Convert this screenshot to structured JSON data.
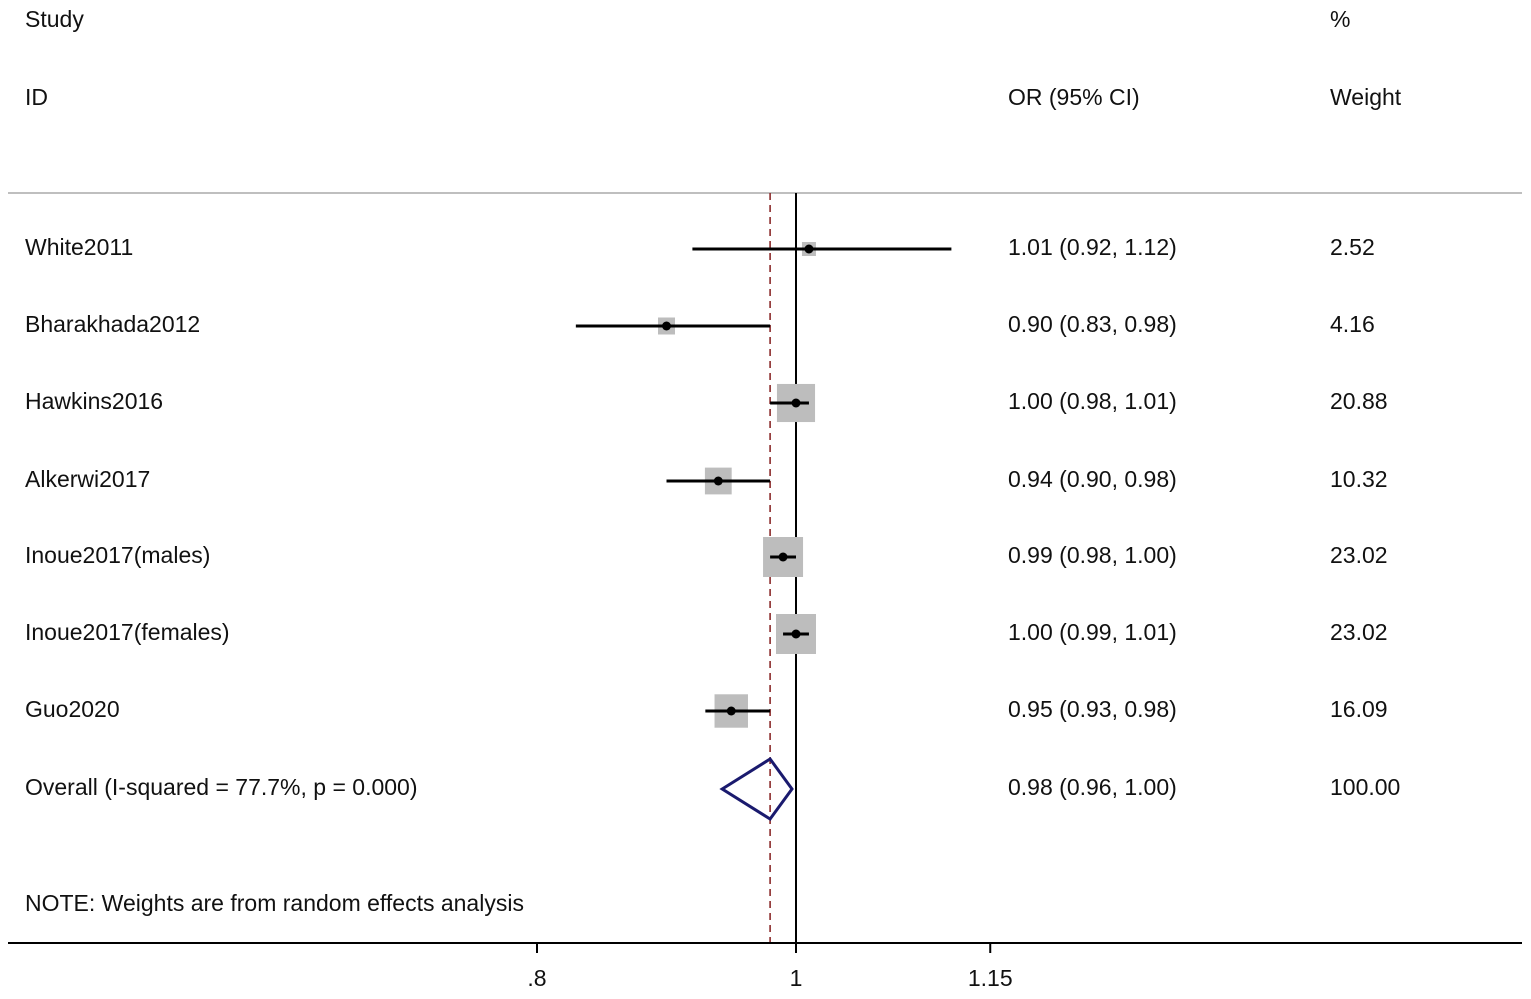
{
  "header": {
    "study": "Study",
    "id": "ID",
    "or_ci": "OR (95% CI)",
    "percent": "%",
    "weight": "Weight"
  },
  "note": "NOTE: Weights are from random effects analysis",
  "chart_data": {
    "type": "forest",
    "xlim": [
      0.72,
      1.5
    ],
    "xticks": [
      {
        "value": 0.8,
        "label": ".8"
      },
      {
        "value": 1.0,
        "label": "1"
      },
      {
        "value": 1.15,
        "label": "1.15"
      }
    ],
    "null_line": 1.0,
    "overall_line": 0.98,
    "studies": [
      {
        "name": "White2011",
        "or": 1.01,
        "lo": 0.92,
        "hi": 1.12,
        "or_text": "1.01 (0.92, 1.12)",
        "weight": 2.52,
        "weight_text": "2.52"
      },
      {
        "name": "Bharakhada2012",
        "or": 0.9,
        "lo": 0.83,
        "hi": 0.98,
        "or_text": "0.90 (0.83, 0.98)",
        "weight": 4.16,
        "weight_text": "4.16"
      },
      {
        "name": "Hawkins2016",
        "or": 1.0,
        "lo": 0.98,
        "hi": 1.01,
        "or_text": "1.00 (0.98, 1.01)",
        "weight": 20.88,
        "weight_text": "20.88"
      },
      {
        "name": "Alkerwi2017",
        "or": 0.94,
        "lo": 0.9,
        "hi": 0.98,
        "or_text": "0.94 (0.90, 0.98)",
        "weight": 10.32,
        "weight_text": "10.32"
      },
      {
        "name": "Inoue2017(males)",
        "or": 0.99,
        "lo": 0.98,
        "hi": 1.0,
        "or_text": "0.99 (0.98, 1.00)",
        "weight": 23.02,
        "weight_text": "23.02"
      },
      {
        "name": "Inoue2017(females)",
        "or": 1.0,
        "lo": 0.99,
        "hi": 1.01,
        "or_text": "1.00 (0.99, 1.01)",
        "weight": 23.02,
        "weight_text": "23.02"
      },
      {
        "name": "Guo2020",
        "or": 0.95,
        "lo": 0.93,
        "hi": 0.98,
        "or_text": "0.95 (0.93, 0.98)",
        "weight": 16.09,
        "weight_text": "16.09"
      }
    ],
    "overall": {
      "name": "Overall  (I-squared = 77.7%, p = 0.000)",
      "or": 0.98,
      "lo": 0.96,
      "hi": 1.0,
      "or_text": "0.98 (0.96, 1.00)",
      "weight_text": "100.00"
    },
    "colors": {
      "box": "#bdbdbd",
      "ci": "#000000",
      "diamond": "#1a1a6e",
      "overall_line": "#8b2a2a",
      "axis": "#000000",
      "separator": "#bfbfbf"
    }
  }
}
